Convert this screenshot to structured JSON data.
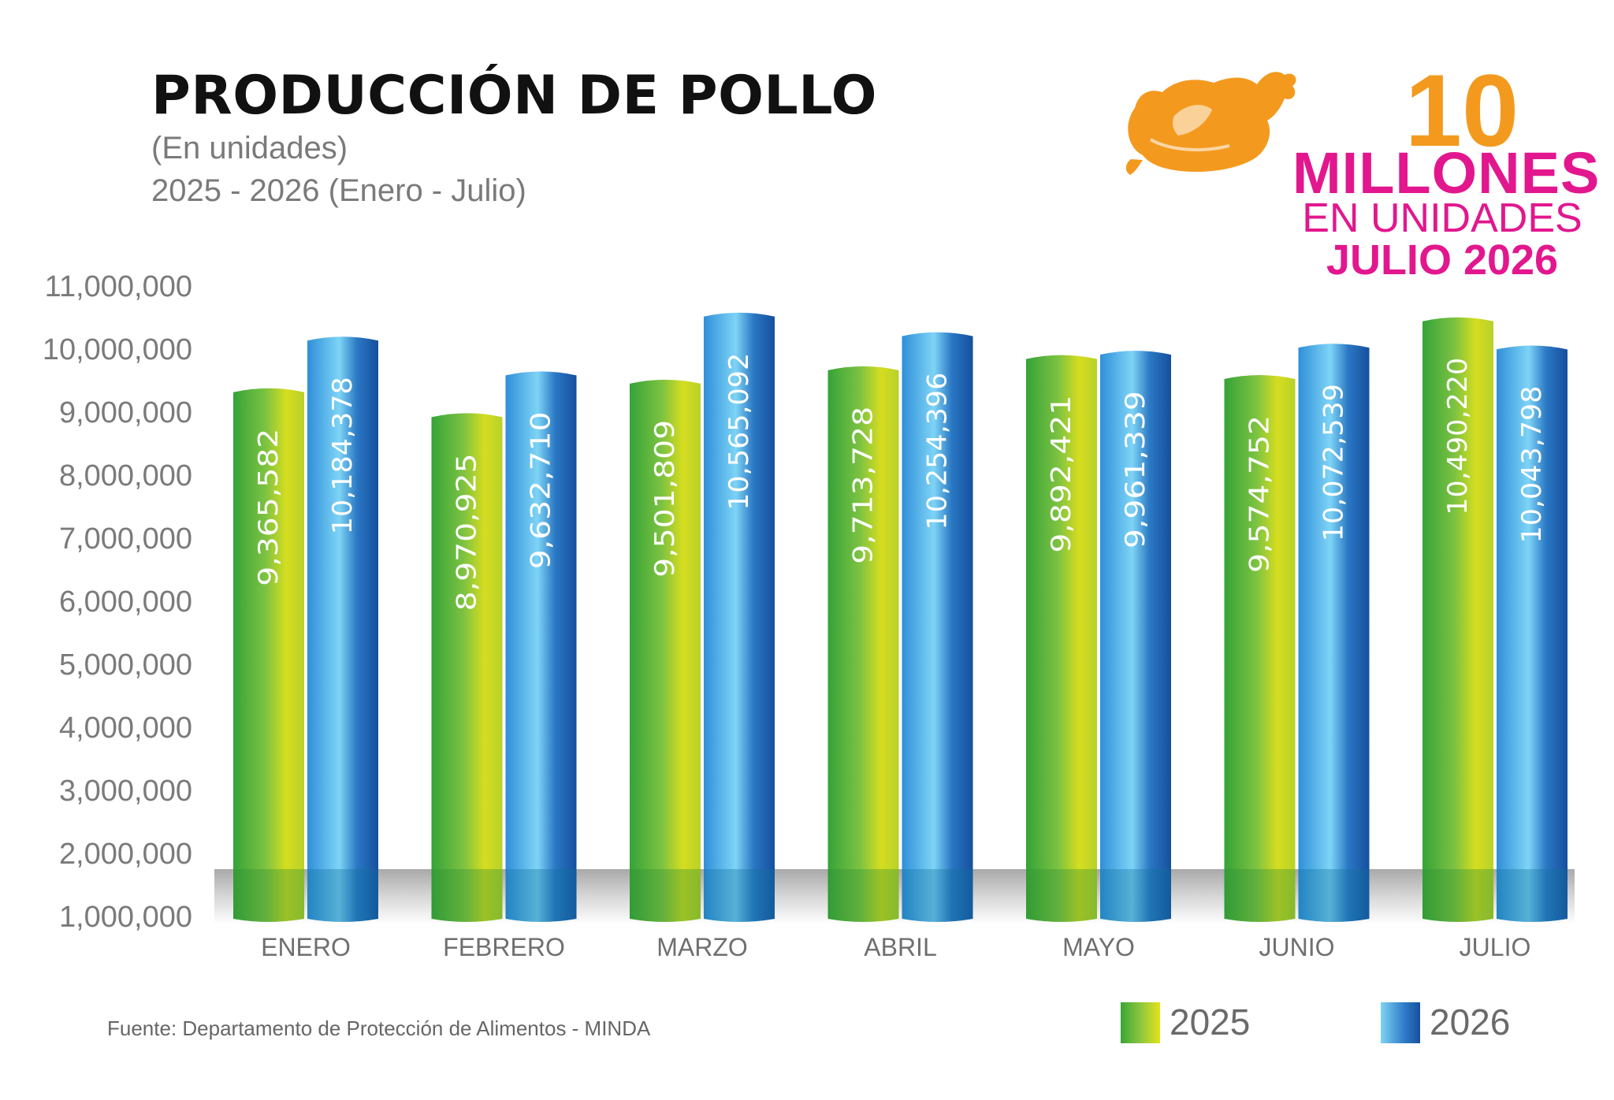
{
  "header": {
    "title": "PRODUCCIÓN DE POLLO",
    "subtitle_1": "(En unidades)",
    "subtitle_2": "2025 - 2026 (Enero - Julio)"
  },
  "badge": {
    "number": "10",
    "line_1": "MILLONES",
    "line_2": "EN UNIDADES",
    "line_3": "JULIO 2026",
    "icon": "chicken-icon",
    "number_color": "#f39a1e",
    "text_color": "#e2178e"
  },
  "chart_data": {
    "type": "bar",
    "categories": [
      "ENERO",
      "FEBRERO",
      "MARZO",
      "ABRIL",
      "MAYO",
      "JUNIO",
      "JULIO"
    ],
    "series": [
      {
        "name": "2025",
        "values": [
          9365582,
          8970925,
          9501809,
          9713728,
          9892421,
          9574752,
          10490220
        ],
        "labels": [
          "9,365,582",
          "8,970,925",
          "9,501,809",
          "9,713,728",
          "9,892,421",
          "9,574,752",
          "10,490,220"
        ],
        "color": "#6dbb2e"
      },
      {
        "name": "2026",
        "values": [
          10184378,
          9632710,
          10565092,
          10254396,
          9961339,
          10072539,
          10043798
        ],
        "labels": [
          "10,184,378",
          "9,632,710",
          "10,565,092",
          "10,254,396",
          "9,961,339",
          "10,072,539",
          "10,043,798"
        ],
        "color": "#2b7cc7"
      }
    ],
    "yticks": [
      "11,000,000",
      "10,000,000",
      "9,000,000",
      "8,000,000",
      "7,000,000",
      "6,000,000",
      "5,000,000",
      "4,000,000",
      "3,000,000",
      "2,000,000",
      "1,000,000"
    ],
    "ylim": [
      1000000,
      11000000
    ],
    "xlabel": "",
    "ylabel": "",
    "grid": false,
    "legend_placement": "bottom-right"
  },
  "legend": {
    "items": [
      {
        "label": "2025"
      },
      {
        "label": "2026"
      }
    ]
  },
  "footer": {
    "source": "Fuente: Departamento de Protección de Alimentos - MINDA"
  }
}
